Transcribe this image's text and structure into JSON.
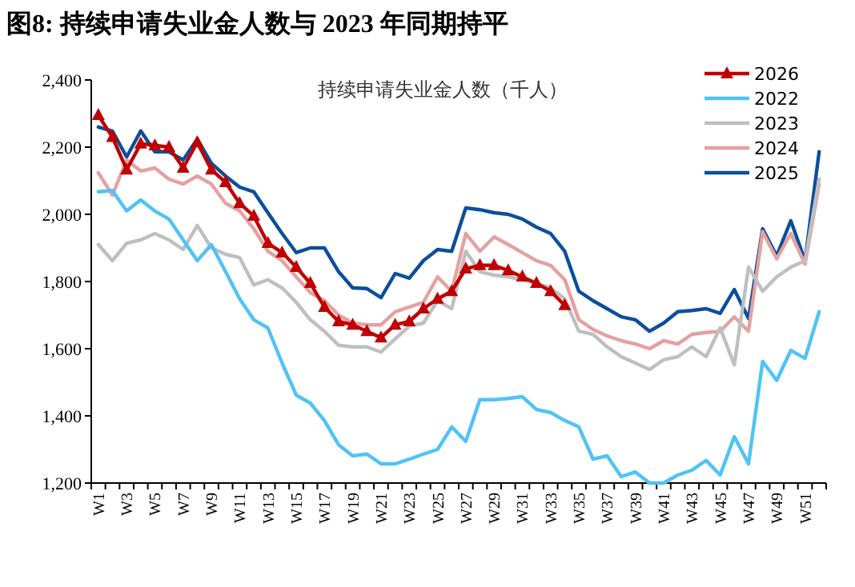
{
  "chart_data": {
    "type": "line",
    "title": "图8:  持续申请失业金人数与 2023 年同期持平",
    "subtitle": "持续申请失业金人数（千人）",
    "categories": [
      "W1",
      null,
      "W3",
      null,
      "W5",
      null,
      "W7",
      null,
      "W9",
      null,
      "W11",
      null,
      "W13",
      null,
      "W15",
      null,
      "W17",
      null,
      "W19",
      null,
      "W21",
      null,
      "W23",
      null,
      "W25",
      null,
      "W27",
      null,
      "W29",
      null,
      "W31",
      null,
      "W33",
      null,
      "W35",
      null,
      "W37",
      null,
      "W39",
      null,
      "W41",
      null,
      "W43",
      null,
      "W45",
      null,
      "W47",
      null,
      "W49",
      null,
      "W51",
      null
    ],
    "ylim": [
      1200,
      2400
    ],
    "yticks": [
      {
        "value": 1200,
        "label": "1,200"
      },
      {
        "value": 1400,
        "label": "1,400"
      },
      {
        "value": 1600,
        "label": "1,600"
      },
      {
        "value": 1800,
        "label": "1,800"
      },
      {
        "value": 2000,
        "label": "2,000"
      },
      {
        "value": 2200,
        "label": "2,200"
      },
      {
        "value": 2400,
        "label": "2,400"
      }
    ],
    "grid": false,
    "legend": "top right",
    "line_style": "solid",
    "series": [
      {
        "name": "2026",
        "color": "#c00000",
        "marker": "triangle",
        "values": [
          2295,
          2230,
          2133,
          2210,
          2205,
          2200,
          2138,
          2214,
          2133,
          2095,
          2033,
          1995,
          1914,
          1886,
          1843,
          1795,
          1724,
          1681,
          1671,
          1652,
          1633,
          1671,
          1681,
          1719,
          1748,
          1771,
          1838,
          1848,
          1848,
          1833,
          1814,
          1795,
          1771,
          1729,
          null,
          null,
          null,
          null,
          null,
          null,
          null,
          null,
          null,
          null,
          null,
          null,
          null,
          null,
          null,
          null,
          null,
          null
        ]
      },
      {
        "name": "2022",
        "color": "#4fc3f7",
        "values": [
          2067,
          2071,
          2010,
          2043,
          2010,
          1986,
          1924,
          1862,
          1910,
          1829,
          1748,
          1686,
          1662,
          1557,
          1462,
          1438,
          1386,
          1314,
          1281,
          1286,
          1257,
          1257,
          1271,
          1286,
          1300,
          1367,
          1324,
          1448,
          1448,
          1452,
          1457,
          1419,
          1410,
          1386,
          1367,
          1271,
          1281,
          1219,
          1233,
          1200,
          1200,
          1224,
          1238,
          1267,
          1224,
          1338,
          1257,
          1562,
          1505,
          1595,
          1571,
          1710
        ]
      },
      {
        "name": "2023",
        "color": "#bfbfbf",
        "values": [
          1910,
          1862,
          1914,
          1924,
          1943,
          1924,
          1895,
          1967,
          1900,
          1881,
          1871,
          1790,
          1805,
          1781,
          1738,
          1686,
          1652,
          1610,
          1605,
          1605,
          1590,
          1629,
          1667,
          1676,
          1743,
          1719,
          1890,
          1829,
          1819,
          1814,
          1805,
          1795,
          1781,
          1748,
          1652,
          1643,
          1605,
          1576,
          1557,
          1538,
          1567,
          1576,
          1605,
          1576,
          1662,
          1552,
          1843,
          1771,
          1814,
          1843,
          1862,
          2105
        ]
      },
      {
        "name": "2024",
        "color": "#e6a0a0",
        "values": [
          2124,
          2057,
          2162,
          2129,
          2138,
          2105,
          2090,
          2114,
          2090,
          2033,
          2010,
          1957,
          1890,
          1862,
          1814,
          1767,
          1743,
          1700,
          1676,
          1671,
          1671,
          1710,
          1724,
          1738,
          1814,
          1771,
          1943,
          1890,
          1933,
          1910,
          1886,
          1862,
          1848,
          1805,
          1686,
          1657,
          1638,
          1624,
          1614,
          1600,
          1624,
          1614,
          1643,
          1648,
          1652,
          1695,
          1652,
          1948,
          1867,
          1943,
          1852,
          2090
        ]
      },
      {
        "name": "2025",
        "color": "#0b4f9c",
        "values": [
          2260,
          2248,
          2171,
          2248,
          2186,
          2186,
          2162,
          2224,
          2152,
          2114,
          2081,
          2067,
          2005,
          1943,
          1886,
          1900,
          1900,
          1829,
          1781,
          1779,
          1752,
          1824,
          1810,
          1862,
          1895,
          1890,
          2019,
          2014,
          2005,
          2000,
          1986,
          1962,
          1943,
          1890,
          1771,
          1743,
          1719,
          1695,
          1686,
          1652,
          1676,
          1710,
          1714,
          1719,
          1705,
          1776,
          1690,
          1957,
          1876,
          1981,
          1862,
          2186
        ]
      }
    ]
  }
}
